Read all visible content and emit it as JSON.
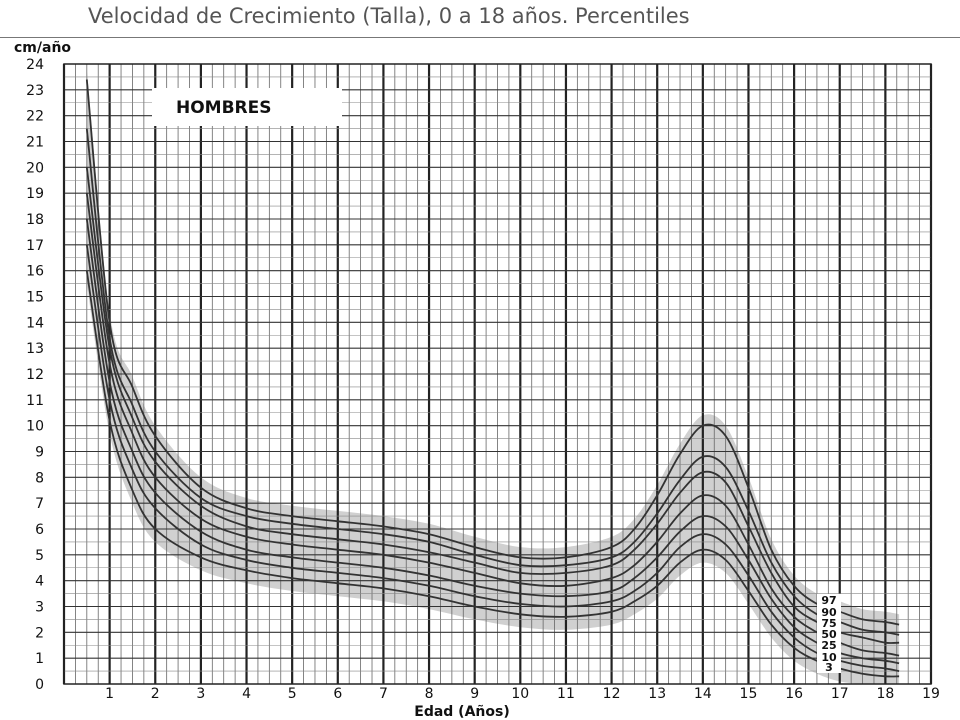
{
  "chart_data": {
    "type": "line",
    "title": "Velocidad de Crecimiento (Talla), 0 a 18 años. Percentiles",
    "badge": "HOMBRES",
    "ylabel": "cm/año",
    "xlabel": "Edad (Años)",
    "xlim": [
      0,
      19
    ],
    "ylim": [
      0,
      24
    ],
    "x_ticks": [
      1,
      2,
      3,
      4,
      5,
      6,
      7,
      8,
      9,
      10,
      11,
      12,
      13,
      14,
      15,
      16,
      17,
      18,
      19
    ],
    "y_ticks": [
      0,
      1,
      2,
      3,
      4,
      5,
      6,
      7,
      8,
      9,
      10,
      11,
      12,
      13,
      14,
      15,
      16,
      17,
      18,
      19,
      20,
      21,
      22,
      23,
      24
    ],
    "grid": true,
    "colors": {
      "line": "#333333",
      "band": "#d0d0d0",
      "grid": "#555555"
    },
    "series": [
      {
        "name": "97",
        "x": [
          0.5,
          1,
          1.5,
          2,
          3,
          4,
          5,
          6,
          7,
          8,
          9,
          10,
          11,
          12,
          12.5,
          13,
          13.5,
          14,
          14.5,
          15,
          15.5,
          16,
          16.5,
          17,
          17.5,
          18,
          18.3
        ],
        "y": [
          23.4,
          14.0,
          11.5,
          9.6,
          7.6,
          6.8,
          6.5,
          6.3,
          6.1,
          5.8,
          5.3,
          4.9,
          4.9,
          5.3,
          6.0,
          7.3,
          8.9,
          10.0,
          9.6,
          7.6,
          5.2,
          3.8,
          3.1,
          2.8,
          2.5,
          2.4,
          2.3
        ]
      },
      {
        "name": "90",
        "x": [
          0.5,
          1,
          1.5,
          2,
          3,
          4,
          5,
          6,
          7,
          8,
          9,
          10,
          11,
          12,
          12.5,
          13,
          13.5,
          14,
          14.5,
          15,
          15.5,
          16,
          16.5,
          17,
          17.5,
          18,
          18.3
        ],
        "y": [
          21.5,
          13.4,
          10.8,
          9.0,
          7.2,
          6.5,
          6.2,
          6.0,
          5.8,
          5.5,
          5.0,
          4.6,
          4.6,
          4.9,
          5.5,
          6.6,
          7.9,
          8.8,
          8.4,
          6.7,
          4.7,
          3.4,
          2.7,
          2.4,
          2.1,
          2.0,
          1.9
        ]
      },
      {
        "name": "75",
        "x": [
          0.5,
          1,
          1.5,
          2,
          3,
          4,
          5,
          6,
          7,
          8,
          9,
          10,
          11,
          12,
          12.5,
          13,
          13.5,
          14,
          14.5,
          15,
          15.5,
          16,
          16.5,
          17,
          17.5,
          18,
          18.3
        ],
        "y": [
          20.0,
          13.0,
          10.3,
          8.6,
          6.9,
          6.1,
          5.8,
          5.6,
          5.4,
          5.1,
          4.7,
          4.3,
          4.3,
          4.6,
          5.2,
          6.2,
          7.4,
          8.2,
          7.8,
          6.1,
          4.3,
          3.0,
          2.4,
          2.0,
          1.8,
          1.6,
          1.6
        ]
      },
      {
        "name": "50",
        "x": [
          0.5,
          1,
          1.5,
          2,
          3,
          4,
          5,
          6,
          7,
          8,
          9,
          10,
          11,
          12,
          12.5,
          13,
          13.5,
          14,
          14.5,
          15,
          15.5,
          16,
          16.5,
          17,
          17.5,
          18,
          18.3
        ],
        "y": [
          19.0,
          12.4,
          9.7,
          8.0,
          6.4,
          5.7,
          5.4,
          5.2,
          5.0,
          4.7,
          4.3,
          3.9,
          3.8,
          4.1,
          4.6,
          5.5,
          6.6,
          7.3,
          6.9,
          5.4,
          3.7,
          2.6,
          2.0,
          1.6,
          1.3,
          1.2,
          1.1
        ]
      },
      {
        "name": "25",
        "x": [
          0.5,
          1,
          1.5,
          2,
          3,
          4,
          5,
          6,
          7,
          8,
          9,
          10,
          11,
          12,
          12.5,
          13,
          13.5,
          14,
          14.5,
          15,
          15.5,
          16,
          16.5,
          17,
          17.5,
          18,
          18.3
        ],
        "y": [
          18.0,
          11.7,
          9.0,
          7.4,
          5.9,
          5.2,
          4.9,
          4.7,
          4.5,
          4.2,
          3.8,
          3.5,
          3.4,
          3.6,
          4.1,
          4.9,
          5.9,
          6.5,
          6.1,
          4.8,
          3.3,
          2.2,
          1.6,
          1.2,
          1.0,
          0.9,
          0.8
        ]
      },
      {
        "name": "10",
        "x": [
          0.5,
          1,
          1.5,
          2,
          3,
          4,
          5,
          6,
          7,
          8,
          9,
          10,
          11,
          12,
          12.5,
          13,
          13.5,
          14,
          14.5,
          15,
          15.5,
          16,
          16.5,
          17,
          17.5,
          18,
          18.3
        ],
        "y": [
          17.0,
          11.0,
          8.3,
          6.8,
          5.4,
          4.8,
          4.5,
          4.3,
          4.1,
          3.8,
          3.4,
          3.1,
          3.0,
          3.2,
          3.6,
          4.3,
          5.3,
          5.8,
          5.4,
          4.2,
          2.8,
          1.8,
          1.2,
          0.9,
          0.7,
          0.6,
          0.5
        ]
      },
      {
        "name": "3",
        "x": [
          0.5,
          1,
          1.5,
          2,
          3,
          4,
          5,
          6,
          7,
          8,
          9,
          10,
          11,
          12,
          12.5,
          13,
          13.5,
          14,
          14.5,
          15,
          15.5,
          16,
          16.5,
          17,
          17.5,
          18,
          18.3
        ],
        "y": [
          16.0,
          10.2,
          7.5,
          6.0,
          4.9,
          4.4,
          4.1,
          3.9,
          3.7,
          3.4,
          3.0,
          2.7,
          2.6,
          2.8,
          3.2,
          3.8,
          4.7,
          5.2,
          4.8,
          3.6,
          2.3,
          1.4,
          0.9,
          0.6,
          0.4,
          0.3,
          0.3
        ]
      }
    ]
  }
}
